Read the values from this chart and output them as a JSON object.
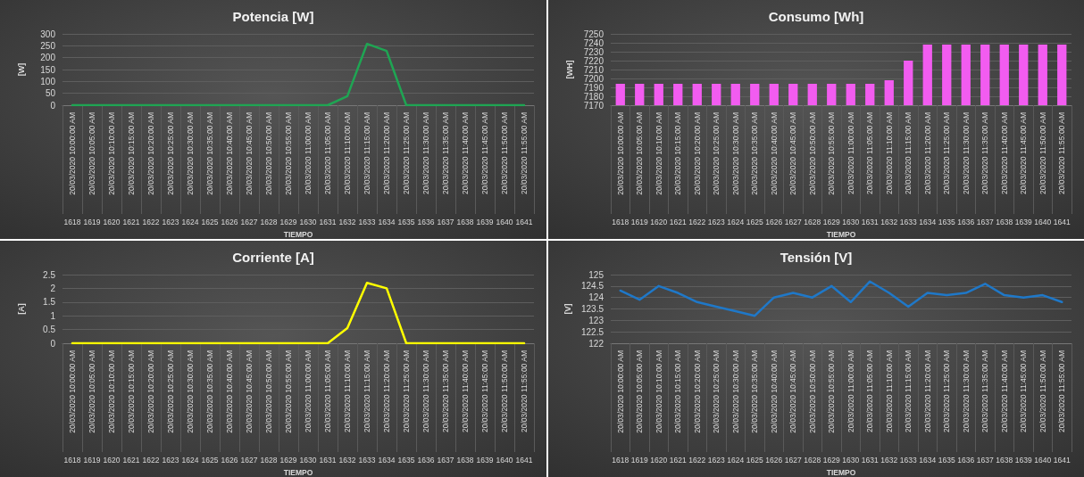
{
  "chart_data": [
    {
      "type": "line",
      "title": "Potencia [W]",
      "xlabel": "TIEMPO",
      "ylabel": "[W]",
      "categories": [
        "20/03/2020 10:00:00 AM\n1618",
        "20/03/2020 10:05:00 AM\n1619",
        "20/03/2020 10:10:00 AM\n1620",
        "20/03/2020 10:15:00 AM\n1621",
        "20/03/2020 10:20:00 AM\n1622",
        "20/03/2020 10:25:00 AM\n1623",
        "20/03/2020 10:30:00 AM\n1624",
        "20/03/2020 10:35:00 AM\n1625",
        "20/03/2020 10:40:00 AM\n1626",
        "20/03/2020 10:45:00 AM\n1627",
        "20/03/2020 10:50:00 AM\n1628",
        "20/03/2020 10:55:00 AM\n1629",
        "20/03/2020 11:00:00 AM\n1630",
        "20/03/2020 11:05:00 AM\n1631",
        "20/03/2020 11:10:00 AM\n1632",
        "20/03/2020 11:15:00 AM\n1633",
        "20/03/2020 11:20:00 AM\n1634",
        "20/03/2020 11:25:00 AM\n1635",
        "20/03/2020 11:30:00 AM\n1636",
        "20/03/2020 11:35:00 AM\n1637",
        "20/03/2020 11:40:00 AM\n1638",
        "20/03/2020 11:45:00 AM\n1639",
        "20/03/2020 11:50:00 AM\n1640",
        "20/03/2020 11:55:00 AM\n1641"
      ],
      "series": [
        {
          "color": "#1fa553",
          "values": [
            0,
            0,
            0,
            0,
            0,
            0,
            0,
            0,
            0,
            0,
            0,
            0,
            0,
            0,
            38,
            258,
            228,
            0,
            0,
            0,
            0,
            0,
            0,
            0
          ]
        }
      ],
      "ylim": [
        0,
        300
      ],
      "yticks": [
        0,
        50,
        100,
        150,
        200,
        250,
        300
      ],
      "grid": "y",
      "marker": "none"
    },
    {
      "type": "bar",
      "title": "Consumo [Wh]",
      "xlabel": "TIEMPO",
      "ylabel": "[WH]",
      "categories": [
        "20/03/2020 10:00:00 AM\n1618",
        "20/03/2020 10:05:00 AM\n1619",
        "20/03/2020 10:10:00 AM\n1620",
        "20/03/2020 10:15:00 AM\n1621",
        "20/03/2020 10:20:00 AM\n1622",
        "20/03/2020 10:25:00 AM\n1623",
        "20/03/2020 10:30:00 AM\n1624",
        "20/03/2020 10:35:00 AM\n1625",
        "20/03/2020 10:40:00 AM\n1626",
        "20/03/2020 10:45:00 AM\n1627",
        "20/03/2020 10:50:00 AM\n1628",
        "20/03/2020 10:55:00 AM\n1629",
        "20/03/2020 11:00:00 AM\n1630",
        "20/03/2020 11:05:00 AM\n1631",
        "20/03/2020 11:10:00 AM\n1632",
        "20/03/2020 11:15:00 AM\n1633",
        "20/03/2020 11:20:00 AM\n1634",
        "20/03/2020 11:25:00 AM\n1635",
        "20/03/2020 11:30:00 AM\n1636",
        "20/03/2020 11:35:00 AM\n1637",
        "20/03/2020 11:40:00 AM\n1638",
        "20/03/2020 11:45:00 AM\n1639",
        "20/03/2020 11:50:00 AM\n1640",
        "20/03/2020 11:55:00 AM\n1641"
      ],
      "series": [
        {
          "color": "#f25cf0",
          "values": [
            7194,
            7194,
            7194,
            7194,
            7194,
            7194,
            7194,
            7194,
            7194,
            7194,
            7194,
            7194,
            7194,
            7194,
            7198,
            7220,
            7238,
            7238,
            7238,
            7238,
            7238,
            7238,
            7238,
            7238
          ]
        }
      ],
      "ylim": [
        7170,
        7250
      ],
      "yticks": [
        7170,
        7180,
        7190,
        7200,
        7210,
        7220,
        7230,
        7240,
        7250
      ],
      "grid": "y"
    },
    {
      "type": "line",
      "title": "Corriente [A]",
      "xlabel": "TIEMPO",
      "ylabel": "[A]",
      "categories": [
        "20/03/2020 10:00:00 AM\n1618",
        "20/03/2020 10:05:00 AM\n1619",
        "20/03/2020 10:10:00 AM\n1620",
        "20/03/2020 10:15:00 AM\n1621",
        "20/03/2020 10:20:00 AM\n1622",
        "20/03/2020 10:25:00 AM\n1623",
        "20/03/2020 10:30:00 AM\n1624",
        "20/03/2020 10:35:00 AM\n1625",
        "20/03/2020 10:40:00 AM\n1626",
        "20/03/2020 10:45:00 AM\n1627",
        "20/03/2020 10:50:00 AM\n1628",
        "20/03/2020 10:55:00 AM\n1629",
        "20/03/2020 11:00:00 AM\n1630",
        "20/03/2020 11:05:00 AM\n1631",
        "20/03/2020 11:10:00 AM\n1632",
        "20/03/2020 11:15:00 AM\n1633",
        "20/03/2020 11:20:00 AM\n1634",
        "20/03/2020 11:25:00 AM\n1635",
        "20/03/2020 11:30:00 AM\n1636",
        "20/03/2020 11:35:00 AM\n1637",
        "20/03/2020 11:40:00 AM\n1638",
        "20/03/2020 11:45:00 AM\n1639",
        "20/03/2020 11:50:00 AM\n1640",
        "20/03/2020 11:55:00 AM\n1641"
      ],
      "series": [
        {
          "color": "#ffff00",
          "values": [
            0,
            0,
            0,
            0,
            0,
            0,
            0,
            0,
            0,
            0,
            0,
            0,
            0,
            0,
            0.55,
            2.2,
            2,
            0,
            0,
            0,
            0,
            0,
            0,
            0
          ]
        }
      ],
      "ylim": [
        0,
        2.5
      ],
      "yticks": [
        0,
        0.5,
        1,
        1.5,
        2,
        2.5
      ],
      "grid": "y",
      "marker": "none"
    },
    {
      "type": "line",
      "title": "Tensión [V]",
      "xlabel": "TIEMPO",
      "ylabel": "[V]",
      "categories": [
        "20/03/2020 10:00:00 AM\n1618",
        "20/03/2020 10:05:00 AM\n1619",
        "20/03/2020 10:10:00 AM\n1620",
        "20/03/2020 10:15:00 AM\n1621",
        "20/03/2020 10:20:00 AM\n1622",
        "20/03/2020 10:25:00 AM\n1623",
        "20/03/2020 10:30:00 AM\n1624",
        "20/03/2020 10:35:00 AM\n1625",
        "20/03/2020 10:40:00 AM\n1626",
        "20/03/2020 10:45:00 AM\n1627",
        "20/03/2020 10:50:00 AM\n1628",
        "20/03/2020 10:55:00 AM\n1629",
        "20/03/2020 11:00:00 AM\n1630",
        "20/03/2020 11:05:00 AM\n1631",
        "20/03/2020 11:10:00 AM\n1632",
        "20/03/2020 11:15:00 AM\n1633",
        "20/03/2020 11:20:00 AM\n1634",
        "20/03/2020 11:25:00 AM\n1635",
        "20/03/2020 11:30:00 AM\n1636",
        "20/03/2020 11:35:00 AM\n1637",
        "20/03/2020 11:40:00 AM\n1638",
        "20/03/2020 11:45:00 AM\n1639",
        "20/03/2020 11:50:00 AM\n1640",
        "20/03/2020 11:55:00 AM\n1641"
      ],
      "series": [
        {
          "color": "#1f78c8",
          "values": [
            124.3,
            123.9,
            124.5,
            124.2,
            123.8,
            123.6,
            123.4,
            123.2,
            124,
            124.2,
            124,
            124.5,
            123.8,
            124.7,
            124.2,
            123.6,
            124.2,
            124.1,
            124.2,
            124.6,
            124.1,
            124,
            124.1,
            123.8
          ]
        }
      ],
      "ylim": [
        122,
        125
      ],
      "yticks": [
        122,
        122.5,
        123,
        123.5,
        124,
        124.5,
        125
      ],
      "grid": "y",
      "marker": "none"
    }
  ]
}
